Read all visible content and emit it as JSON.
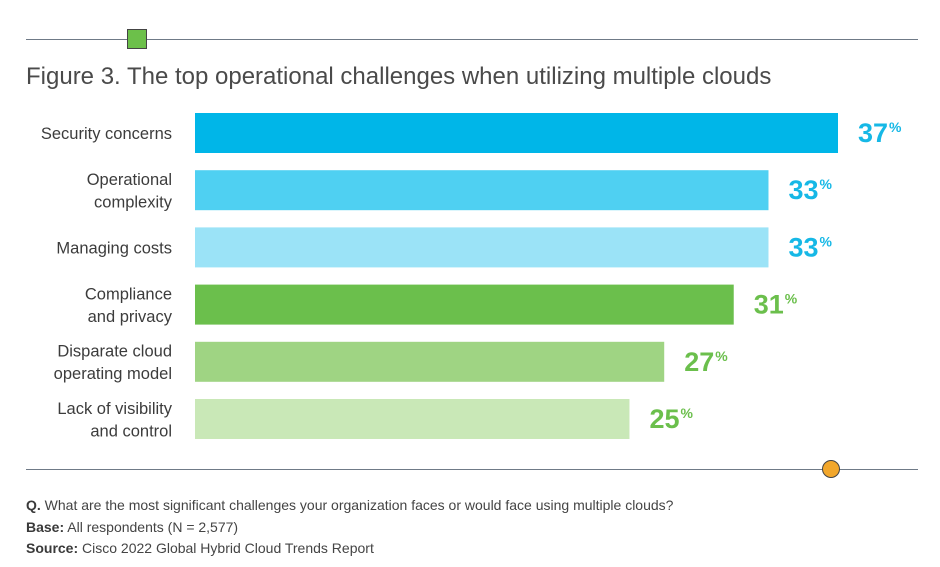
{
  "figure": {
    "title": "Figure 3. The top operational challenges when utilizing multiple clouds"
  },
  "chart_data": {
    "type": "bar",
    "orientation": "horizontal",
    "title": "Figure 3. The top operational challenges when utilizing multiple clouds",
    "categories": [
      [
        "Security concerns"
      ],
      [
        "Operational",
        "complexity"
      ],
      [
        "Managing costs"
      ],
      [
        "Compliance",
        "and privacy"
      ],
      [
        "Disparate cloud",
        "operating model"
      ],
      [
        "Lack of visibility",
        "and control"
      ]
    ],
    "values": [
      37,
      33,
      33,
      31,
      27,
      25
    ],
    "value_suffix": "%",
    "bar_colors": [
      "#00b6e8",
      "#4fd0f2",
      "#9be3f7",
      "#6bbf4c",
      "#9fd483",
      "#c9e8b7"
    ],
    "label_colors": [
      "#16b8e6",
      "#16b8e6",
      "#16b8e6",
      "#6bbf4c",
      "#6bbf4c",
      "#6bbf4c"
    ],
    "xlim": [
      0,
      37
    ],
    "xlabel": "",
    "ylabel": ""
  },
  "footer": {
    "question_label": "Q.",
    "question_text": "What are the most significant challenges your organization faces or would face using multiple clouds?",
    "base_label": "Base:",
    "base_text": "All respondents (N = 2,577)",
    "source_label": "Source:",
    "source_text": "Cisco 2022 Global Hybrid Cloud Trends Report"
  }
}
